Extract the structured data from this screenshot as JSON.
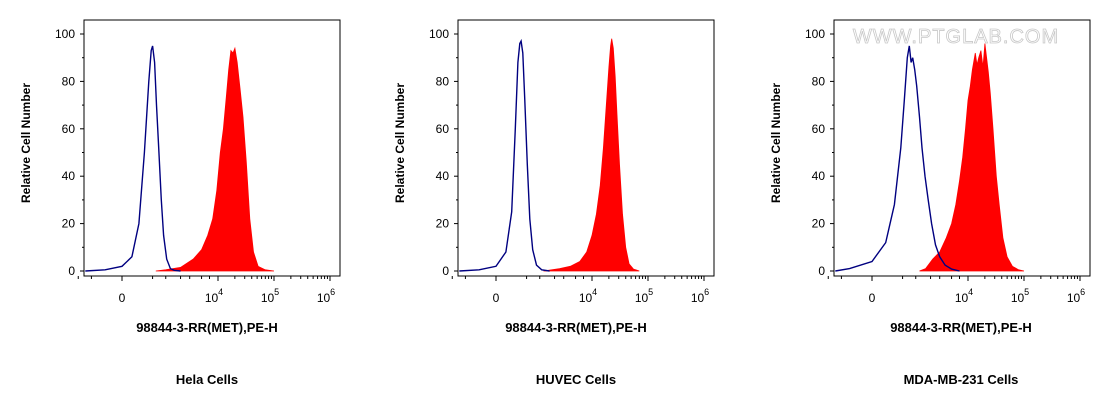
{
  "watermark": "WWW.PTGLAB.COM",
  "colors": {
    "sample": "#ff0000",
    "control": "#000080",
    "axis": "#000000"
  },
  "chart_data": [
    {
      "type": "area",
      "title": "Hela Cells",
      "xlabel": "98844-3-RR(MET),PE-H",
      "ylabel": "Relative Cell Number",
      "ylim": [
        0,
        100
      ],
      "yticks": [
        0,
        20,
        40,
        60,
        80,
        100
      ],
      "xticks": [
        {
          "base": "0",
          "exp": "",
          "value": 0
        },
        {
          "base": "10",
          "exp": "4",
          "value": 10000
        },
        {
          "base": "10",
          "exp": "5",
          "value": 100000
        },
        {
          "base": "10",
          "exp": "6",
          "value": 1000000
        }
      ],
      "xscale": "biexponential",
      "grid": false,
      "series": [
        {
          "fill": true,
          "color": "#ff0000",
          "points": [
            [
              600,
              0
            ],
            [
              1000,
              0.5
            ],
            [
              2000,
              1.5
            ],
            [
              3500,
              5
            ],
            [
              5000,
              9
            ],
            [
              6500,
              15
            ],
            [
              8000,
              22
            ],
            [
              9500,
              34
            ],
            [
              11000,
              50
            ],
            [
              12500,
              60
            ],
            [
              14000,
              73
            ],
            [
              15500,
              85
            ],
            [
              17000,
              93
            ],
            [
              18500,
              92
            ],
            [
              20000,
              94
            ],
            [
              22000,
              88
            ],
            [
              25000,
              76
            ],
            [
              28000,
              65
            ],
            [
              32000,
              46
            ],
            [
              37000,
              22
            ],
            [
              43000,
              8
            ],
            [
              52000,
              2
            ],
            [
              70000,
              0.5
            ],
            [
              100000,
              0
            ]
          ]
        },
        {
          "fill": false,
          "color": "#000080",
          "points": [
            [
              -700,
              0
            ],
            [
              -200,
              0.5
            ],
            [
              0,
              2
            ],
            [
              100,
              6
            ],
            [
              200,
              20
            ],
            [
              300,
              50
            ],
            [
              400,
              80
            ],
            [
              460,
              93
            ],
            [
              500,
              95
            ],
            [
              560,
              88
            ],
            [
              620,
              70
            ],
            [
              700,
              52
            ],
            [
              800,
              30
            ],
            [
              900,
              15
            ],
            [
              1050,
              5
            ],
            [
              1250,
              1
            ],
            [
              1500,
              0.3
            ],
            [
              2000,
              0
            ]
          ]
        }
      ]
    },
    {
      "type": "area",
      "title": "HUVEC Cells",
      "xlabel": "98844-3-RR(MET),PE-H",
      "ylabel": "Relative Cell Number",
      "ylim": [
        0,
        100
      ],
      "yticks": [
        0,
        20,
        40,
        60,
        80,
        100
      ],
      "xticks": [
        {
          "base": "0",
          "exp": "",
          "value": 0
        },
        {
          "base": "10",
          "exp": "4",
          "value": 10000
        },
        {
          "base": "10",
          "exp": "5",
          "value": 100000
        },
        {
          "base": "10",
          "exp": "6",
          "value": 1000000
        }
      ],
      "xscale": "biexponential",
      "grid": false,
      "series": [
        {
          "fill": true,
          "color": "#ff0000",
          "points": [
            [
              1200,
              0
            ],
            [
              2500,
              1
            ],
            [
              4000,
              2
            ],
            [
              6000,
              4
            ],
            [
              8000,
              8
            ],
            [
              10000,
              15
            ],
            [
              12000,
              24
            ],
            [
              14000,
              36
            ],
            [
              16000,
              52
            ],
            [
              18000,
              70
            ],
            [
              20000,
              86
            ],
            [
              21500,
              95
            ],
            [
              22500,
              98
            ],
            [
              24000,
              94
            ],
            [
              26000,
              82
            ],
            [
              28000,
              66
            ],
            [
              31000,
              45
            ],
            [
              35000,
              24
            ],
            [
              40000,
              10
            ],
            [
              46000,
              3
            ],
            [
              55000,
              0.8
            ],
            [
              70000,
              0
            ]
          ]
        },
        {
          "fill": false,
          "color": "#000080",
          "points": [
            [
              -700,
              0
            ],
            [
              -200,
              0.5
            ],
            [
              0,
              2
            ],
            [
              100,
              8
            ],
            [
              180,
              25
            ],
            [
              240,
              60
            ],
            [
              290,
              88
            ],
            [
              330,
              96
            ],
            [
              360,
              97
            ],
            [
              400,
              92
            ],
            [
              450,
              72
            ],
            [
              520,
              45
            ],
            [
              600,
              22
            ],
            [
              700,
              9
            ],
            [
              850,
              2.5
            ],
            [
              1100,
              0.5
            ],
            [
              1600,
              0
            ]
          ]
        }
      ]
    },
    {
      "type": "area",
      "title": "MDA-MB-231 Cells",
      "xlabel": "98844-3-RR(MET),PE-H",
      "ylabel": "Relative Cell Number",
      "ylim": [
        0,
        100
      ],
      "yticks": [
        0,
        20,
        40,
        60,
        80,
        100
      ],
      "xticks": [
        {
          "base": "0",
          "exp": "",
          "value": 0
        },
        {
          "base": "10",
          "exp": "4",
          "value": 10000
        },
        {
          "base": "10",
          "exp": "5",
          "value": 100000
        },
        {
          "base": "10",
          "exp": "6",
          "value": 1000000
        }
      ],
      "xscale": "biexponential",
      "grid": false,
      "series": [
        {
          "fill": true,
          "color": "#ff0000",
          "points": [
            [
              1200,
              0
            ],
            [
              1600,
              1
            ],
            [
              2200,
              5
            ],
            [
              3000,
              8
            ],
            [
              4000,
              14
            ],
            [
              5000,
              20
            ],
            [
              6000,
              28
            ],
            [
              7000,
              38
            ],
            [
              8000,
              48
            ],
            [
              9000,
              60
            ],
            [
              10000,
              72
            ],
            [
              11000,
              78
            ],
            [
              12000,
              85
            ],
            [
              13500,
              92
            ],
            [
              14500,
              87
            ],
            [
              15500,
              90
            ],
            [
              17000,
              93
            ],
            [
              18500,
              86
            ],
            [
              20000,
              96
            ],
            [
              21500,
              90
            ],
            [
              23000,
              84
            ],
            [
              25000,
              75
            ],
            [
              28000,
              60
            ],
            [
              32000,
              40
            ],
            [
              36000,
              28
            ],
            [
              42000,
              14
            ],
            [
              50000,
              6
            ],
            [
              62000,
              2
            ],
            [
              80000,
              0.5
            ],
            [
              100000,
              0
            ]
          ]
        },
        {
          "fill": false,
          "color": "#000080",
          "points": [
            [
              -700,
              0
            ],
            [
              -300,
              1
            ],
            [
              0,
              4
            ],
            [
              150,
              12
            ],
            [
              300,
              28
            ],
            [
              450,
              52
            ],
            [
              550,
              72
            ],
            [
              650,
              90
            ],
            [
              720,
              95
            ],
            [
              790,
              88
            ],
            [
              860,
              90
            ],
            [
              950,
              85
            ],
            [
              1050,
              78
            ],
            [
              1200,
              65
            ],
            [
              1350,
              52
            ],
            [
              1550,
              40
            ],
            [
              1800,
              30
            ],
            [
              2100,
              20
            ],
            [
              2500,
              11
            ],
            [
              3000,
              6
            ],
            [
              3800,
              2.5
            ],
            [
              5000,
              0.8
            ],
            [
              7000,
              0
            ]
          ]
        }
      ]
    }
  ]
}
